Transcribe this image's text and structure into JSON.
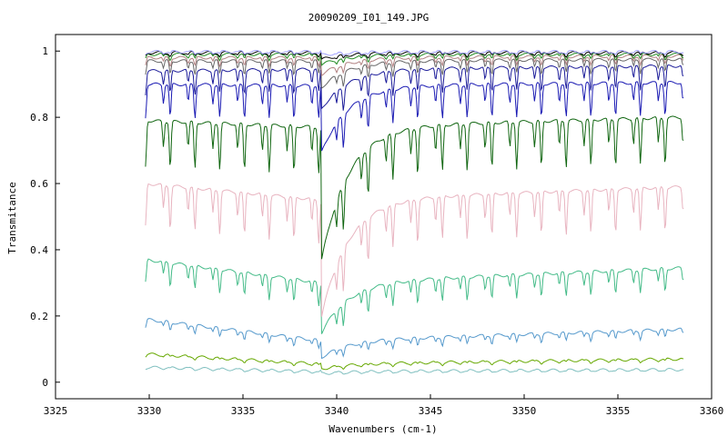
{
  "chart_data": {
    "type": "line",
    "title": "20090209_I01_149.JPG",
    "xlabel": "Wavenumbers (cm-1)",
    "ylabel": "Transmitance",
    "xlim": [
      3325,
      3360
    ],
    "ylim": [
      -0.05,
      1.05
    ],
    "x_ticks": [
      "3325",
      "3330",
      "3335",
      "3340",
      "3345",
      "3350",
      "3355",
      "3360"
    ],
    "y_ticks": [
      "0",
      "0.2",
      "0.4",
      "0.6",
      "0.8",
      "1"
    ],
    "x_range_data": [
      3329.8,
      3358.5
    ],
    "step_x": 0.6,
    "grid": false,
    "legend": "none",
    "main_dip_x": 3339.2,
    "series": [
      {
        "color": "#7fbfbf",
        "base_start": 0.045,
        "base_end": 0.038,
        "base_mid": 0.032,
        "dip_depth": 0.003,
        "main_drop": 0.006
      },
      {
        "color": "#66a800",
        "base_start": 0.085,
        "base_end": 0.07,
        "base_mid": 0.055,
        "dip_depth": 0.006,
        "main_drop": 0.015
      },
      {
        "color": "#5599cc",
        "base_start": 0.19,
        "base_end": 0.16,
        "base_mid": 0.125,
        "dip_depth": 0.025,
        "main_drop": 0.05
      },
      {
        "color": "#44bb88",
        "base_start": 0.37,
        "base_end": 0.345,
        "base_mid": 0.3,
        "dip_depth": 0.07,
        "main_drop": 0.15
      },
      {
        "color": "#e8b4c0",
        "base_start": 0.6,
        "base_end": 0.59,
        "base_mid": 0.55,
        "dip_depth": 0.13,
        "main_drop": 0.35
      },
      {
        "color": "#116611",
        "base_start": 0.79,
        "base_end": 0.8,
        "base_mid": 0.77,
        "dip_depth": 0.14,
        "main_drop": 0.4
      },
      {
        "color": "#1a1ab3",
        "base_start": 0.9,
        "base_end": 0.905,
        "base_mid": 0.895,
        "dip_depth": 0.1,
        "main_drop": 0.2
      },
      {
        "color": "#1a1a99",
        "base_start": 0.94,
        "base_end": 0.955,
        "base_mid": 0.945,
        "dip_depth": 0.07,
        "main_drop": 0.12
      },
      {
        "color": "#666666",
        "base_start": 0.97,
        "base_end": 0.975,
        "base_mid": 0.97,
        "dip_depth": 0.04,
        "main_drop": 0.08
      },
      {
        "color": "#b08080",
        "base_start": 0.98,
        "base_end": 0.985,
        "base_mid": 0.98,
        "dip_depth": 0.025,
        "main_drop": 0.05
      },
      {
        "color": "#228b22",
        "base_start": 0.99,
        "base_end": 0.99,
        "base_mid": 0.99,
        "dip_depth": 0.015,
        "main_drop": 0.03
      },
      {
        "color": "#000000",
        "base_start": 0.995,
        "base_end": 0.995,
        "base_mid": 0.995,
        "dip_depth": 0.01,
        "main_drop": 0.02
      },
      {
        "color": "#a0a0ff",
        "base_start": 0.998,
        "base_end": 0.998,
        "base_mid": 0.998,
        "dip_depth": 0.006,
        "main_drop": 0.01
      }
    ]
  }
}
